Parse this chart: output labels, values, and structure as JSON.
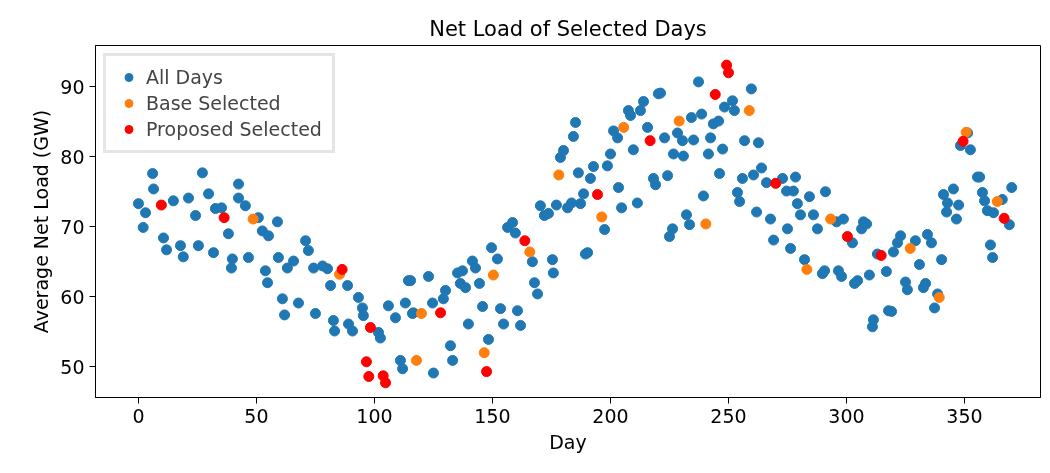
{
  "chart_data": {
    "type": "scatter",
    "title": "Net Load of Selected Days",
    "xlabel": "Day",
    "ylabel": "Average Net Load (GW)",
    "xlim": [
      -18.2,
      382.2
    ],
    "ylim": [
      45.6,
      95.9
    ],
    "xticks": [
      0,
      50,
      100,
      150,
      200,
      250,
      300,
      350
    ],
    "yticks": [
      50,
      60,
      70,
      80,
      90
    ],
    "grid": false,
    "legend": "top left",
    "marker": "circle",
    "series": [
      {
        "name": "All Days",
        "color": "#1f77b4",
        "x": [
          0,
          3,
          2,
          6,
          6.4,
          10.6,
          11.9,
          14.8,
          17.8,
          19,
          21.2,
          24.2,
          25.4,
          27.1,
          29.7,
          31.8,
          32.6,
          35.2,
          38.1,
          39.8,
          39.4,
          42.4,
          42.4,
          45.3,
          46.6,
          50.8,
          52.5,
          55.1,
          58.9,
          53.8,
          54.7,
          59.3,
          61,
          61.9,
          63.1,
          65.7,
          67.8,
          70.8,
          72,
          75,
          74.2,
          78,
          80.1,
          81.4,
          82.6,
          83.1,
          88.6,
          89,
          90.7,
          93.2,
          94.9,
          95.3,
          101.7,
          102.5,
          105.9,
          108.9,
          111,
          111.9,
          113.1,
          114.4,
          116.1,
          115.3,
          116.5,
          122.9,
          124.6,
          125,
          129.2,
          130.1,
          132.2,
          133.1,
          135.2,
          137.3,
          136.4,
          138.6,
          139.8,
          141.5,
          142.8,
          144.5,
          145.8,
          148.3,
          149.6,
          152.1,
          153.4,
          154.7,
          156.4,
          158.5,
          159.7,
          160.6,
          161.9,
          166.9,
          167.8,
          169.1,
          175.4,
          175.8,
          170.3,
          172,
          173.7,
          177.1,
          181.8,
          183.5,
          187.3,
          188.6,
          186.4,
          191.5,
          192.8,
          189.4,
          190.3,
          178.8,
          180.1,
          184.3,
          185.2,
          197.5,
          198.7,
          200,
          201.3,
          203,
          203.4,
          204.7,
          207.6,
          208.5,
          209.7,
          211.4,
          212.7,
          214,
          215.7,
          218.2,
          219.1,
          220.3,
          221.2,
          222.9,
          224.2,
          225,
          226.3,
          226.7,
          228.4,
          230.5,
          230.9,
          232.2,
          233.5,
          234.3,
          235.2,
          237.3,
          238.6,
          239.4,
          241.5,
          242.4,
          243.6,
          245.8,
          246.2,
          247.5,
          248.3,
          251.7,
          252.5,
          253.8,
          254.7,
          255.9,
          256.8,
          259.7,
          260.6,
          261.9,
          262.7,
          264,
          266.1,
          267.8,
          269.1,
          272.9,
          274.6,
          275,
          276.3,
          277.5,
          278.4,
          279.2,
          280.5,
          282.2,
          284.3,
          286,
          287.7,
          289.8,
          290.7,
          291.1,
          295.8,
          296.6,
          297.9,
          298.7,
          302.5,
          303.4,
          304.7,
          306.4,
          307.2,
          308.5,
          309.7,
          311,
          311.4,
          313.1,
          316.9,
          317.8,
          319.1,
          319.9,
          321.6,
          322.9,
          325,
          325.8,
          329.2,
          330.9,
          332.6,
          333.5,
          334.3,
          336,
          337.3,
          338.6,
          340.3,
          341.1,
          342.8,
          345.3,
          342.4,
          346.6,
          347.5,
          348.3,
          352.5,
          351.3,
          355.5,
          356.4,
          357.6,
          358.5,
          359.7,
          361,
          361.9,
          362.3,
          366,
          369,
          370
        ],
        "values": [
          73.3,
          72,
          69.9,
          77.6,
          75.4,
          68.4,
          66.7,
          73.7,
          67.3,
          65.7,
          74.1,
          71.6,
          67.3,
          77.7,
          74.7,
          66.3,
          72.6,
          72.7,
          69,
          65.4,
          64.1,
          76.1,
          74.1,
          73,
          65.6,
          71.3,
          69.4,
          68.7,
          70.7,
          63.7,
          62,
          65.6,
          59.7,
          57.4,
          64.1,
          65.1,
          59.1,
          68,
          66.6,
          57.6,
          64.1,
          64.4,
          64,
          61.6,
          56.6,
          55.1,
          61.6,
          56.1,
          55.1,
          59.9,
          58.4,
          57.3,
          54.9,
          54.1,
          58.7,
          57,
          50.9,
          49.7,
          59.1,
          62.3,
          57.6,
          62.3,
          57.7,
          62.9,
          59.1,
          49.1,
          59.7,
          60.9,
          53,
          50.9,
          63.4,
          63.7,
          61.9,
          61.3,
          56.1,
          65.1,
          64.1,
          61.9,
          58.6,
          53.9,
          67,
          65.4,
          58.3,
          56.1,
          69.9,
          70.6,
          69.1,
          58,
          55.9,
          65,
          62,
          60.4,
          65.3,
          63.4,
          73,
          71.6,
          71.9,
          73.1,
          72.7,
          73.4,
          73.3,
          74.7,
          77.7,
          76.9,
          78.6,
          66.1,
          66.3,
          79.9,
          80.9,
          82.9,
          84.9,
          69.6,
          78.7,
          80.4,
          83.7,
          82.7,
          75.6,
          72.7,
          86.6,
          85.9,
          81,
          73.4,
          86.6,
          87.9,
          84.2,
          76.9,
          76,
          89,
          89.1,
          82.7,
          77.3,
          68.6,
          69.7,
          80.4,
          83.4,
          82.3,
          80.1,
          71.7,
          70.3,
          85.6,
          82.4,
          90.7,
          86.1,
          74.4,
          80.4,
          82.7,
          84.7,
          85.1,
          77.6,
          81.1,
          87.1,
          88,
          86.6,
          74.9,
          73.6,
          76.9,
          82.3,
          89.7,
          77.4,
          72.1,
          82,
          78.4,
          76.3,
          71.1,
          68.1,
          76.9,
          75.1,
          69.7,
          66.9,
          75.1,
          77.1,
          73.3,
          71.7,
          65.3,
          74.3,
          71.7,
          69.7,
          63.3,
          63.7,
          75,
          70.7,
          63.7,
          62.9,
          71.1,
          67.7,
          61.9,
          62.3,
          69.7,
          70.7,
          70.4,
          63.1,
          55.7,
          56.7,
          66.1,
          63.6,
          58,
          57.9,
          66.4,
          67.7,
          68.7,
          62.1,
          61,
          68,
          64.6,
          61.3,
          61.9,
          68.9,
          67.7,
          58.4,
          60.4,
          65.3,
          74.6,
          73.4,
          75.4,
          72.1,
          71.1,
          73.1,
          81.6,
          81,
          83.4,
          77.1,
          77.1,
          74.9,
          73.7,
          72.3,
          67.4,
          65.6,
          72,
          73.9,
          70.3,
          75.6
        ]
      },
      {
        "name": "Base Selected",
        "color": "#ff7f0e",
        "x": [
          48.6,
          85.2,
          119.9,
          117.8,
          150.4,
          146.5,
          165.8,
          178.1,
          196.3,
          205.6,
          229.1,
          240.4,
          258.8,
          293.3,
          283.2,
          327,
          339.3,
          350.7,
          363.9
        ],
        "values": [
          71.1,
          63.2,
          57.6,
          50.9,
          63.1,
          52,
          66.4,
          77.4,
          71.4,
          84.2,
          85.1,
          70.4,
          86.6,
          71.1,
          63.9,
          66.9,
          59.9,
          83.5,
          73.6
        ]
      },
      {
        "name": "Proposed Selected",
        "color": "#ff0000",
        "x": [
          9.7,
          36.3,
          86.3,
          98.3,
          96.6,
          97.6,
          103.7,
          104.7,
          128,
          147.5,
          163.7,
          194.5,
          216.8,
          244.4,
          249.2,
          250,
          270,
          300.4,
          314.7,
          349.4,
          366.8
        ],
        "values": [
          73.1,
          71.3,
          63.9,
          55.6,
          50.7,
          48.6,
          48.7,
          47.7,
          57.7,
          49.3,
          68,
          74.6,
          82.3,
          88.9,
          93.1,
          92,
          76.2,
          68.6,
          65.9,
          82.2,
          71.2
        ]
      }
    ]
  }
}
